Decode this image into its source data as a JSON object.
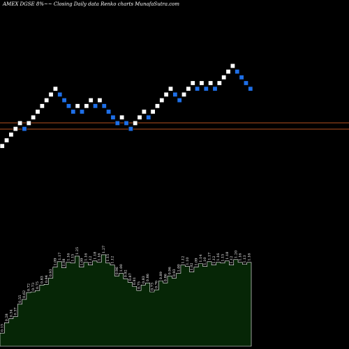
{
  "title": "AMEX  DGSE 8%~~  Closing Daily data  Renko  charts MunafaSutra.com",
  "colors": {
    "background": "#000000",
    "brick_up": "#ffffff",
    "brick_down": "#1e6fe8",
    "reference_line": "#b5501f",
    "volume_fill": "#062606",
    "volume_line": "#ffffff"
  },
  "chart_data": [
    {
      "type": "renko",
      "title": "AMEX  DGSE 8%~~  Closing Daily data  Renko  charts MunafaSutra.com",
      "bricks": [
        {
          "level": 0,
          "dir": "up"
        },
        {
          "level": 1,
          "dir": "up"
        },
        {
          "level": 2,
          "dir": "up"
        },
        {
          "level": 3,
          "dir": "up"
        },
        {
          "level": 4,
          "dir": "up"
        },
        {
          "level": 3,
          "dir": "down"
        },
        {
          "level": 4,
          "dir": "up"
        },
        {
          "level": 5,
          "dir": "up"
        },
        {
          "level": 6,
          "dir": "up"
        },
        {
          "level": 7,
          "dir": "up"
        },
        {
          "level": 8,
          "dir": "up"
        },
        {
          "level": 9,
          "dir": "up"
        },
        {
          "level": 10,
          "dir": "up"
        },
        {
          "level": 9,
          "dir": "down"
        },
        {
          "level": 8,
          "dir": "down"
        },
        {
          "level": 7,
          "dir": "down"
        },
        {
          "level": 6,
          "dir": "down"
        },
        {
          "level": 7,
          "dir": "up"
        },
        {
          "level": 6,
          "dir": "down"
        },
        {
          "level": 7,
          "dir": "up"
        },
        {
          "level": 8,
          "dir": "up"
        },
        {
          "level": 7,
          "dir": "down"
        },
        {
          "level": 8,
          "dir": "up"
        },
        {
          "level": 7,
          "dir": "down"
        },
        {
          "level": 6,
          "dir": "down"
        },
        {
          "level": 5,
          "dir": "down"
        },
        {
          "level": 4,
          "dir": "down"
        },
        {
          "level": 5,
          "dir": "up"
        },
        {
          "level": 4,
          "dir": "down"
        },
        {
          "level": 3,
          "dir": "down"
        },
        {
          "level": 4,
          "dir": "up"
        },
        {
          "level": 5,
          "dir": "up"
        },
        {
          "level": 6,
          "dir": "up"
        },
        {
          "level": 5,
          "dir": "down"
        },
        {
          "level": 6,
          "dir": "up"
        },
        {
          "level": 7,
          "dir": "up"
        },
        {
          "level": 8,
          "dir": "up"
        },
        {
          "level": 9,
          "dir": "up"
        },
        {
          "level": 10,
          "dir": "up"
        },
        {
          "level": 9,
          "dir": "down"
        },
        {
          "level": 8,
          "dir": "down"
        },
        {
          "level": 9,
          "dir": "up"
        },
        {
          "level": 10,
          "dir": "up"
        },
        {
          "level": 11,
          "dir": "up"
        },
        {
          "level": 10,
          "dir": "down"
        },
        {
          "level": 11,
          "dir": "up"
        },
        {
          "level": 10,
          "dir": "down"
        },
        {
          "level": 11,
          "dir": "up"
        },
        {
          "level": 10,
          "dir": "down"
        },
        {
          "level": 11,
          "dir": "up"
        },
        {
          "level": 12,
          "dir": "up"
        },
        {
          "level": 13,
          "dir": "up"
        },
        {
          "level": 14,
          "dir": "up"
        },
        {
          "level": 13,
          "dir": "down"
        },
        {
          "level": 12,
          "dir": "down"
        },
        {
          "level": 11,
          "dir": "down"
        },
        {
          "level": 10,
          "dir": "down"
        }
      ],
      "reference_lines": [
        "upper",
        "lower"
      ]
    },
    {
      "type": "area",
      "labels": [
        "0.13",
        "0.28",
        "0.34",
        "0.37",
        "0.55",
        "0.62",
        "0.72",
        "0.73",
        "0.75",
        "0.83",
        "0.84",
        "0.93",
        "1.09",
        "1.17",
        "1.08",
        "1.16",
        "1.15",
        "1.25",
        "1.09",
        "1.16",
        "1.12",
        "1.18",
        "1.16",
        "1.27",
        "1.15",
        "1.12",
        "0.96",
        "1.00",
        "0.92",
        "0.87",
        "0.81",
        "0.75",
        "0.83",
        "0.86",
        "0.73",
        "0.76",
        "0.89",
        "0.86",
        "0.96",
        "0.93",
        "1.00",
        "1.12",
        "1.10",
        "1.02",
        "1.09",
        "1.14",
        "1.10",
        "1.17",
        "1.12",
        "1.16",
        "1.15",
        "1.18",
        "1.12",
        "1.20",
        "1.16",
        "1.13",
        "1.16"
      ],
      "values": [
        0.13,
        0.28,
        0.34,
        0.37,
        0.55,
        0.62,
        0.72,
        0.73,
        0.75,
        0.83,
        0.84,
        0.93,
        1.09,
        1.17,
        1.08,
        1.16,
        1.15,
        1.25,
        1.09,
        1.16,
        1.12,
        1.18,
        1.16,
        1.27,
        1.15,
        1.12,
        0.96,
        1.0,
        0.92,
        0.87,
        0.81,
        0.75,
        0.83,
        0.86,
        0.73,
        0.76,
        0.89,
        0.86,
        0.96,
        0.93,
        1.0,
        1.12,
        1.1,
        1.02,
        1.09,
        1.14,
        1.1,
        1.17,
        1.12,
        1.16,
        1.15,
        1.18,
        1.12,
        1.2,
        1.16,
        1.13,
        1.16
      ]
    }
  ]
}
